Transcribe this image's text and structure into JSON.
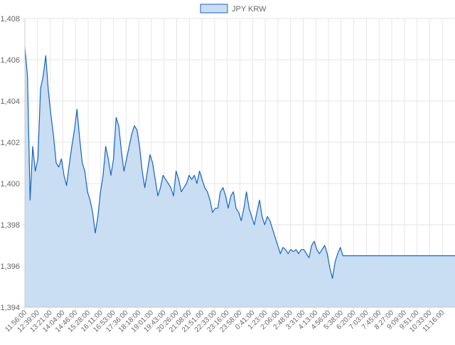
{
  "chart_data": {
    "type": "area",
    "title": "",
    "xlabel": "",
    "ylabel": "",
    "ylim": [
      1394,
      1408
    ],
    "y_ticks": [
      1394,
      1396,
      1398,
      1400,
      1402,
      1404,
      1406,
      1408
    ],
    "y_tick_labels": [
      "1,394",
      "1,396",
      "1,398",
      "1,400",
      "1,402",
      "1,404",
      "1,406",
      "1,408"
    ],
    "x_tick_labels": [
      "11:56:00",
      "12:39:00",
      "13:21:00",
      "14:04:00",
      "14:46:00",
      "15:28:00",
      "16:11:00",
      "16:53:00",
      "17:36:00",
      "18:18:00",
      "19:01:00",
      "19:43:00",
      "20:26:00",
      "21:08:00",
      "21:51:00",
      "22:33:00",
      "23:16:00",
      "23:58:00",
      "0:41:00",
      "1:23:00",
      "2:06:00",
      "2:48:00",
      "3:31:00",
      "4:13:00",
      "4:56:00",
      "5:38:00",
      "6:20:00",
      "7:03:00",
      "7:45:00",
      "8:27:00",
      "9:09:00",
      "9:51:00",
      "10:33:00",
      "11:16:00"
    ],
    "grid": true,
    "legend_position": "top-center",
    "series": [
      {
        "name": "JPY KRW",
        "line_color": "#1565c0",
        "fill_color": "#c9ddf3",
        "values": [
          1406.6,
          1405.2,
          1399.2,
          1401.8,
          1400.6,
          1401.2,
          1404.6,
          1405.2,
          1406.2,
          1404.5,
          1403.3,
          1402.3,
          1401.0,
          1400.8,
          1401.2,
          1400.4,
          1399.9,
          1400.9,
          1401.8,
          1402.6,
          1403.6,
          1402.2,
          1401.0,
          1400.6,
          1399.6,
          1399.2,
          1398.6,
          1397.6,
          1398.4,
          1399.6,
          1400.4,
          1401.8,
          1401.2,
          1400.4,
          1401.2,
          1403.2,
          1402.8,
          1401.6,
          1400.6,
          1401.2,
          1401.8,
          1402.4,
          1402.8,
          1402.6,
          1401.8,
          1400.6,
          1399.8,
          1400.6,
          1401.4,
          1401.0,
          1400.2,
          1399.4,
          1399.8,
          1400.4,
          1400.2,
          1400.0,
          1399.8,
          1399.4,
          1400.6,
          1400.2,
          1399.6,
          1399.8,
          1400.0,
          1400.4,
          1400.2,
          1400.4,
          1400.0,
          1400.6,
          1400.2,
          1399.8,
          1399.6,
          1399.2,
          1398.6,
          1398.8,
          1398.8,
          1399.6,
          1399.8,
          1399.4,
          1398.8,
          1399.4,
          1399.6,
          1398.8,
          1398.6,
          1398.2,
          1398.8,
          1399.6,
          1398.8,
          1398.4,
          1398.0,
          1398.6,
          1399.2,
          1398.4,
          1398.0,
          1398.4,
          1398.2,
          1397.8,
          1397.4,
          1397.0,
          1396.6,
          1396.9,
          1396.8,
          1396.6,
          1396.8,
          1396.7,
          1396.8,
          1396.6,
          1396.8,
          1396.8,
          1396.6,
          1396.4,
          1397.0,
          1397.2,
          1396.8,
          1396.6,
          1396.8,
          1397.0,
          1396.6,
          1395.9,
          1395.4,
          1396.2,
          1396.6,
          1396.9,
          1396.5,
          1396.5,
          1396.5,
          1396.5,
          1396.5,
          1396.5,
          1396.5,
          1396.5,
          1396.5,
          1396.5,
          1396.5,
          1396.5,
          1396.5,
          1396.5,
          1396.5,
          1396.5,
          1396.5,
          1396.5,
          1396.5,
          1396.5,
          1396.5,
          1396.5,
          1396.5,
          1396.5,
          1396.5,
          1396.5,
          1396.5,
          1396.5,
          1396.5,
          1396.5,
          1396.5,
          1396.5,
          1396.5,
          1396.5,
          1396.5,
          1396.5,
          1396.5,
          1396.5,
          1396.5,
          1396.5,
          1396.5,
          1396.5,
          1396.5,
          1396.5
        ]
      }
    ]
  }
}
